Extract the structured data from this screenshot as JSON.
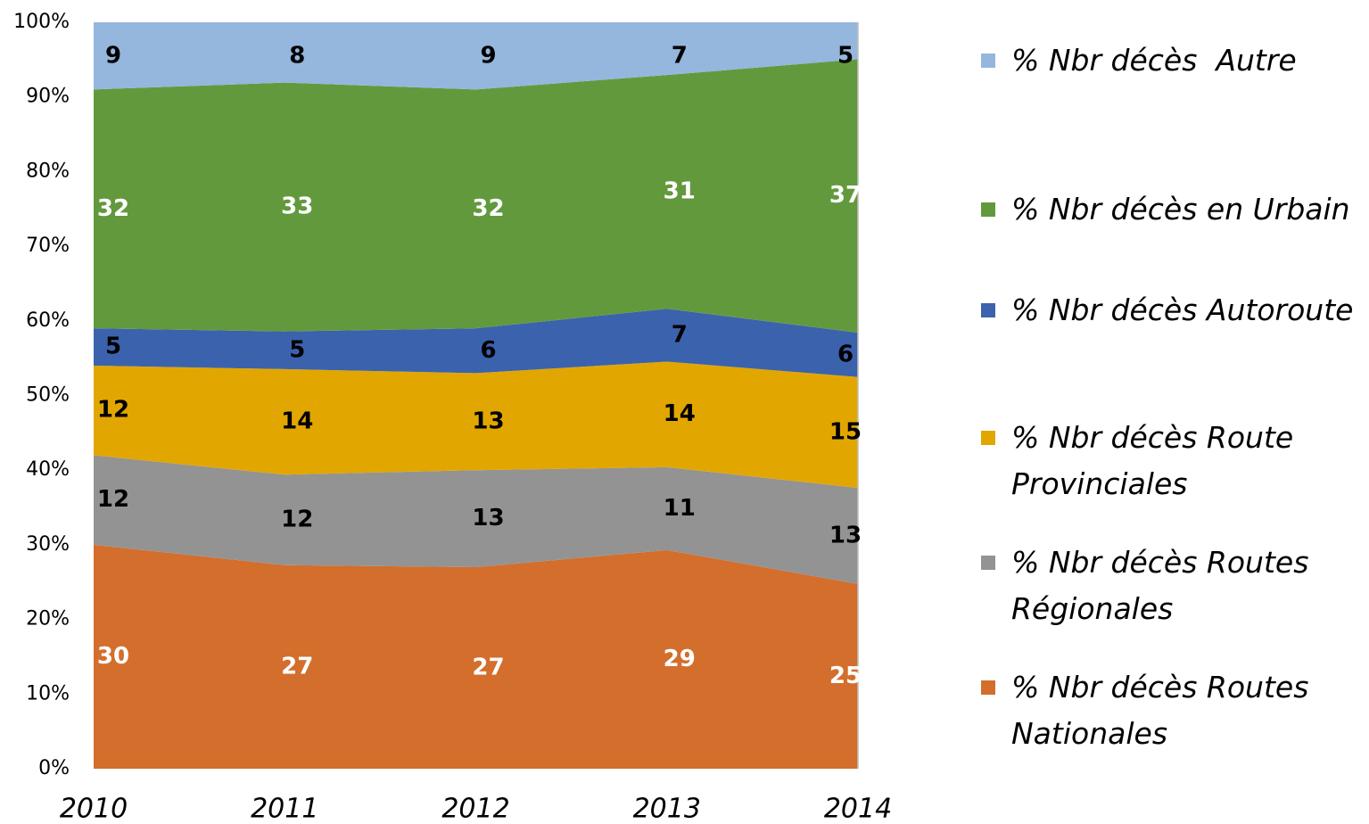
{
  "chart_data": {
    "type": "stacked_area_100",
    "x": [
      2010,
      2011,
      2012,
      2013,
      2014
    ],
    "series": [
      {
        "name": "% Nbr décès Routes Nationales",
        "color": "#d36e2c",
        "label_color": "#ffffff",
        "values": [
          30,
          27,
          27,
          29,
          25
        ]
      },
      {
        "name": "% Nbr décès Routes Régionales",
        "color": "#939393",
        "label_color": "#000000",
        "values": [
          12,
          12,
          13,
          11,
          13
        ]
      },
      {
        "name": "% Nbr décès Route Provinciales",
        "color": "#e2a600",
        "label_color": "#000000",
        "values": [
          12,
          14,
          13,
          14,
          15
        ]
      },
      {
        "name": "% Nbr décès Autoroute",
        "color": "#3b62ad",
        "label_color": "#000000",
        "values": [
          5,
          5,
          6,
          7,
          6
        ]
      },
      {
        "name": "% Nbr décès en Urbain",
        "color": "#63993d",
        "label_color": "#ffffff",
        "values": [
          32,
          33,
          32,
          31,
          37
        ]
      },
      {
        "name": "% Nbr décès  Autre",
        "color": "#95b6dd",
        "label_color": "#000000",
        "values": [
          9,
          8,
          9,
          7,
          5
        ]
      }
    ],
    "ylim": [
      0,
      100
    ],
    "yticks": [
      {
        "value": 0,
        "label": "0%"
      },
      {
        "value": 10,
        "label": "10%"
      },
      {
        "value": 20,
        "label": "20%"
      },
      {
        "value": 30,
        "label": "30%"
      },
      {
        "value": 40,
        "label": "40%"
      },
      {
        "value": 50,
        "label": "50%"
      },
      {
        "value": 60,
        "label": "60%"
      },
      {
        "value": 70,
        "label": "70%"
      },
      {
        "value": 80,
        "label": "80%"
      },
      {
        "value": 90,
        "label": "90%"
      },
      {
        "value": 100,
        "label": "100%"
      }
    ],
    "legend": "right"
  }
}
